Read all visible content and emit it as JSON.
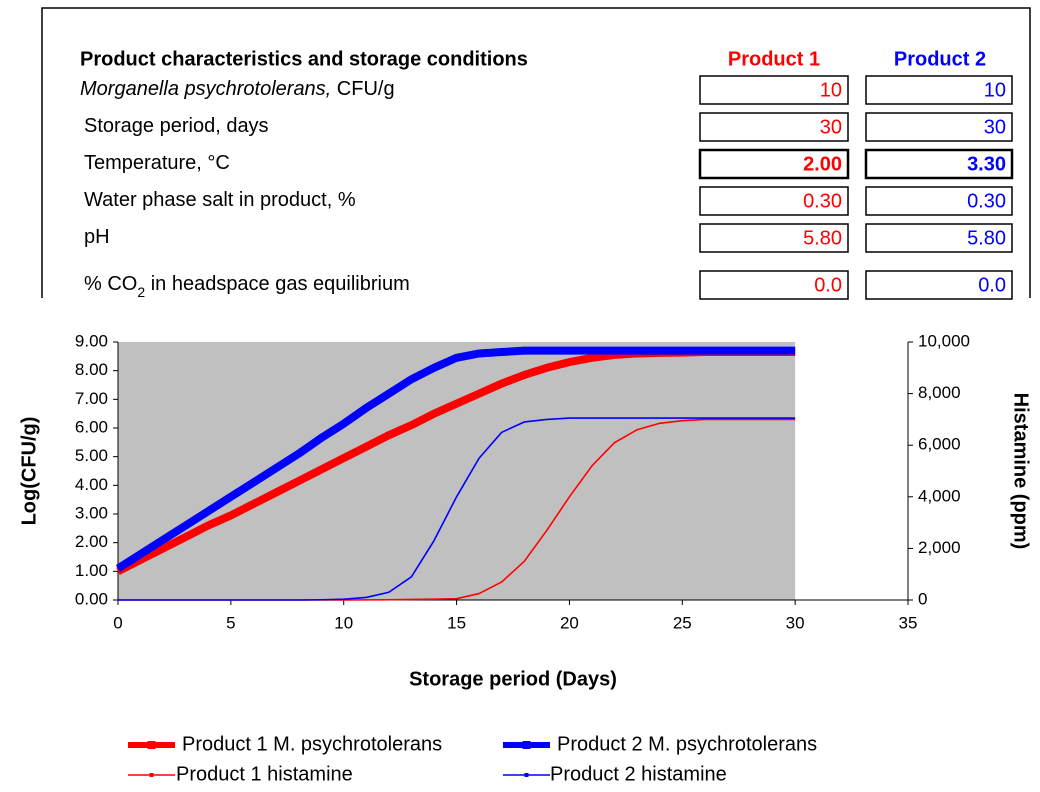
{
  "table": {
    "header": {
      "title": "Product characteristics and storage conditions",
      "product1": "Product 1",
      "product2": "Product 2"
    },
    "rows": [
      {
        "label": [
          {
            "text": "Morganella psychrotolerans,",
            "style": "italic"
          },
          {
            "text": " CFU/g"
          }
        ],
        "values": [
          "10",
          "10"
        ]
      },
      {
        "label": [
          {
            "text": "Storage period, days"
          }
        ],
        "values": [
          "30",
          "30"
        ]
      },
      {
        "label": [
          {
            "text": "Temperature, °C"
          }
        ],
        "values": [
          "2.00",
          "3.30"
        ]
      },
      {
        "label": [
          {
            "text": "Water phase salt in product, %"
          }
        ],
        "values": [
          "0.30",
          "0.30"
        ]
      },
      {
        "label": [
          {
            "text": "pH"
          }
        ],
        "values": [
          "5.80",
          "5.80"
        ]
      },
      {
        "label": [
          {
            "text": "% CO"
          },
          {
            "text": "2",
            "style": "sub"
          },
          {
            "text": " in headspace gas equilibrium"
          }
        ],
        "values": [
          "0.0",
          "0.0"
        ]
      }
    ]
  },
  "chart_data": {
    "type": "line",
    "x_label": "Storage period (Days)",
    "y_label": "Log(CFU/g)",
    "y2_label": "Histamine (ppm)",
    "x": [
      0,
      1,
      2,
      3,
      4,
      5,
      6,
      7,
      8,
      9,
      10,
      11,
      12,
      13,
      14,
      15,
      16,
      17,
      18,
      19,
      20,
      21,
      22,
      23,
      24,
      25,
      26,
      27,
      28,
      29,
      30
    ],
    "series": [
      {
        "name": "Product 1 M. psychrotolerans",
        "color": "#ff0000",
        "axis": "y",
        "values": [
          1.0,
          1.4,
          1.8,
          2.2,
          2.6,
          2.95,
          3.35,
          3.75,
          4.15,
          4.55,
          4.95,
          5.35,
          5.75,
          6.1,
          6.5,
          6.85,
          7.2,
          7.55,
          7.85,
          8.1,
          8.3,
          8.45,
          8.55,
          8.6,
          8.62,
          8.63,
          8.65,
          8.65,
          8.65,
          8.65,
          8.65
        ]
      },
      {
        "name": "Product 2 M. psychrotolerans",
        "color": "#0000ff",
        "axis": "y",
        "values": [
          1.1,
          1.6,
          2.1,
          2.6,
          3.1,
          3.6,
          4.1,
          4.6,
          5.1,
          5.65,
          6.15,
          6.7,
          7.2,
          7.7,
          8.1,
          8.45,
          8.6,
          8.65,
          8.7,
          8.7,
          8.7,
          8.7,
          8.7,
          8.7,
          8.7,
          8.7,
          8.7,
          8.7,
          8.7,
          8.7,
          8.7
        ]
      },
      {
        "name": "Product 1 histamine",
        "color": "#ff0000",
        "axis": "y2",
        "values": [
          0,
          0,
          0,
          0,
          0,
          0,
          0,
          0,
          0,
          0,
          0,
          5,
          10,
          20,
          30,
          50,
          250,
          700,
          1500,
          2700,
          4000,
          5200,
          6100,
          6600,
          6850,
          6950,
          7000,
          7000,
          7000,
          7000,
          7000
        ]
      },
      {
        "name": "Product 2 histamine",
        "color": "#0000ff",
        "axis": "y2",
        "values": [
          0,
          0,
          0,
          0,
          0,
          0,
          0,
          0,
          0,
          10,
          30,
          100,
          300,
          900,
          2300,
          4000,
          5500,
          6500,
          6900,
          7000,
          7050,
          7050,
          7050,
          7050,
          7050,
          7050,
          7050,
          7050,
          7050,
          7050,
          7050
        ]
      }
    ],
    "xlim": [
      0,
      35
    ],
    "xticks": [
      0,
      5,
      10,
      15,
      20,
      25,
      30,
      35
    ],
    "ylim": [
      0,
      9
    ],
    "yticks": [
      {
        "value": 0,
        "label": "0.00"
      },
      {
        "value": 1,
        "label": "1.00"
      },
      {
        "value": 2,
        "label": "2.00"
      },
      {
        "value": 3,
        "label": "3.00"
      },
      {
        "value": 4,
        "label": "4.00"
      },
      {
        "value": 5,
        "label": "5.00"
      },
      {
        "value": 6,
        "label": "6.00"
      },
      {
        "value": 7,
        "label": "7.00"
      },
      {
        "value": 8,
        "label": "8.00"
      },
      {
        "value": 9,
        "label": "9.00"
      }
    ],
    "y2lim": [
      0,
      10000
    ],
    "y2ticks": [
      0,
      {
        "value": 2000,
        "label": "2,000"
      },
      {
        "value": 4000,
        "label": "4,000"
      },
      {
        "value": 6000,
        "label": "6,000"
      },
      {
        "value": 8000,
        "label": "8,000"
      },
      {
        "value": 10000,
        "label": "10,000"
      }
    ],
    "plot_background": "#c0c0c0",
    "legend": "bottom"
  }
}
